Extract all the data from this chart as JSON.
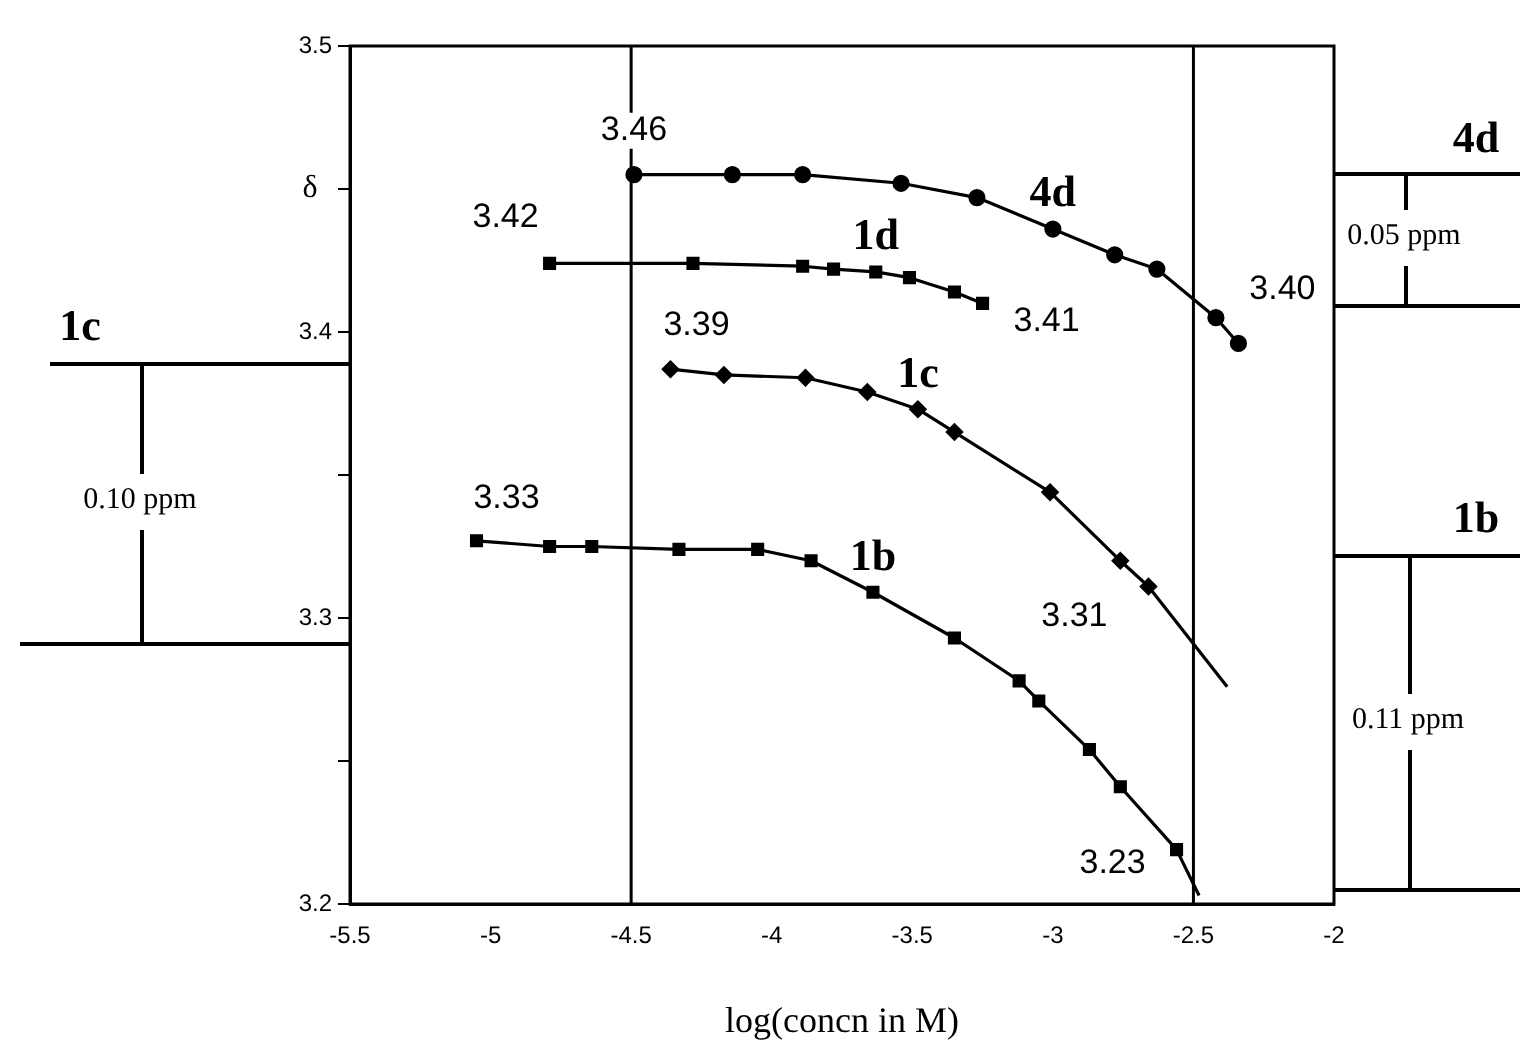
{
  "chart_data": {
    "type": "line",
    "ylabel": "δ",
    "xlabel": "log(concn in M)",
    "xlim": [
      -5.5,
      -2
    ],
    "xticks": [
      -5.5,
      -5,
      -4.5,
      -4,
      -3.5,
      -3,
      -2.5,
      -2
    ],
    "ylim": [
      3.2,
      3.5
    ],
    "yticks": [
      3.2,
      {
        "value": 3.25,
        "label": null
      },
      3.3,
      {
        "value": 3.35,
        "label": null
      },
      3.4,
      {
        "value": 3.45,
        "label": null
      },
      3.5
    ],
    "grid": false,
    "legend": false,
    "series": [
      {
        "name": "4d",
        "type": "line",
        "color": "#000000",
        "marker": "circle",
        "x": [
          -4.49,
          -4.14,
          -3.89,
          -3.54,
          -3.27,
          -3.0,
          -2.78,
          -2.63,
          -2.42,
          -2.34
        ],
        "values": [
          3.455,
          3.455,
          3.455,
          3.452,
          3.447,
          3.436,
          3.427,
          3.422,
          3.405,
          3.396
        ]
      },
      {
        "name": "1d",
        "type": "line",
        "color": "#000000",
        "marker": "square",
        "x": [
          -4.79,
          -4.28,
          -3.89,
          -3.78,
          -3.63,
          -3.51,
          -3.35,
          -3.25
        ],
        "values": [
          3.424,
          3.424,
          3.423,
          3.422,
          3.421,
          3.419,
          3.414,
          3.41
        ]
      },
      {
        "name": "1c",
        "type": "line",
        "color": "#000000",
        "marker": "diamond",
        "x": [
          -4.36,
          -4.17,
          -3.88,
          -3.66,
          -3.48,
          -3.35,
          -3.01,
          -2.76,
          -2.66
        ],
        "values": [
          3.387,
          3.385,
          3.384,
          3.379,
          3.373,
          3.365,
          3.344,
          3.32,
          3.311
        ]
      },
      {
        "type": "line",
        "color": "#000000",
        "marker": "none",
        "x": [
          -2.66,
          -2.38
        ],
        "values": [
          3.311,
          3.276
        ]
      },
      {
        "name": "1b",
        "type": "line",
        "color": "#000000",
        "marker": "square",
        "x": [
          -5.05,
          -4.79,
          -4.64,
          -4.33,
          -4.05,
          -3.86,
          -3.64,
          -3.35,
          -3.12,
          -3.05,
          -2.87,
          -2.76,
          -2.56
        ],
        "values": [
          3.327,
          3.325,
          3.325,
          3.324,
          3.324,
          3.32,
          3.309,
          3.293,
          3.278,
          3.271,
          3.254,
          3.241,
          3.219
        ]
      },
      {
        "type": "line",
        "color": "#000000",
        "marker": "none",
        "x": [
          -2.56,
          -2.48
        ],
        "values": [
          3.219,
          3.203
        ]
      }
    ],
    "ref_lines": [
      {
        "axis": "x",
        "value": -4.5,
        "color": "#000000"
      },
      {
        "axis": "x",
        "value": -2.5,
        "color": "#000000"
      }
    ],
    "annotations": [
      {
        "text": "3.46",
        "x": -4.49,
        "y": 3.455
      },
      {
        "text": "3.42",
        "x": -4.79,
        "y": 3.424
      },
      {
        "text": "3.39",
        "x": -4.36,
        "y": 3.387
      },
      {
        "text": "3.41",
        "x": -3.25,
        "y": 3.41
      },
      {
        "text": "3.40",
        "x": -2.34,
        "y": 3.396
      },
      {
        "text": "3.31",
        "x": -2.66,
        "y": 3.311
      },
      {
        "text": "3.33",
        "x": -5.05,
        "y": 3.327
      },
      {
        "text": "3.23",
        "x": -2.56,
        "y": 3.219
      },
      "1c",
      "0.10 ppm",
      "4d",
      "0.05 ppm",
      "1b",
      "0.11 ppm"
    ]
  }
}
